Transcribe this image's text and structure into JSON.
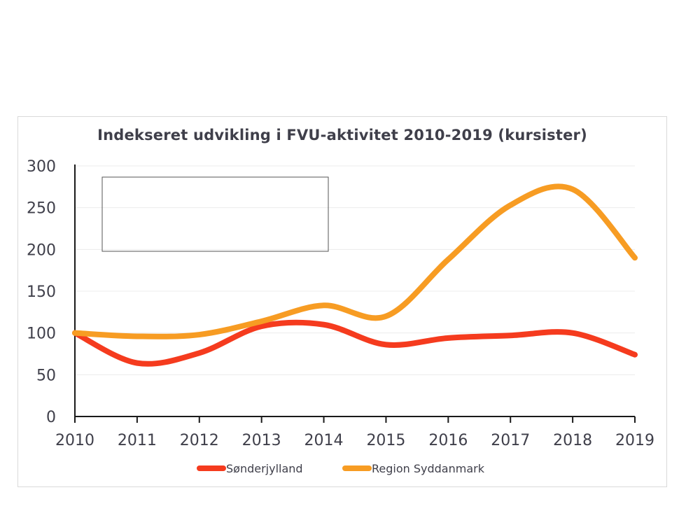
{
  "chart_data": {
    "type": "line",
    "title": "Indekseret udvikling i FVU-aktivitet 2010-2019 (kursister)",
    "xlabel": "",
    "ylabel": "",
    "categories": [
      "2010",
      "2011",
      "2012",
      "2013",
      "2014",
      "2015",
      "2016",
      "2017",
      "2018",
      "2019"
    ],
    "yticks": [
      "0",
      "50",
      "100",
      "150",
      "200",
      "250",
      "300"
    ],
    "ylim": [
      0,
      300
    ],
    "grid": true,
    "legend_position": "bottom",
    "series": [
      {
        "name": "Sønderjylland",
        "color": "#f53b1e",
        "values": [
          100,
          64,
          76,
          108,
          110,
          86,
          94,
          97,
          100,
          74
        ]
      },
      {
        "name": "Region Syddanmark",
        "color": "#f79c23",
        "values": [
          100,
          96,
          98,
          114,
          133,
          120,
          188,
          253,
          272,
          190
        ]
      }
    ]
  }
}
